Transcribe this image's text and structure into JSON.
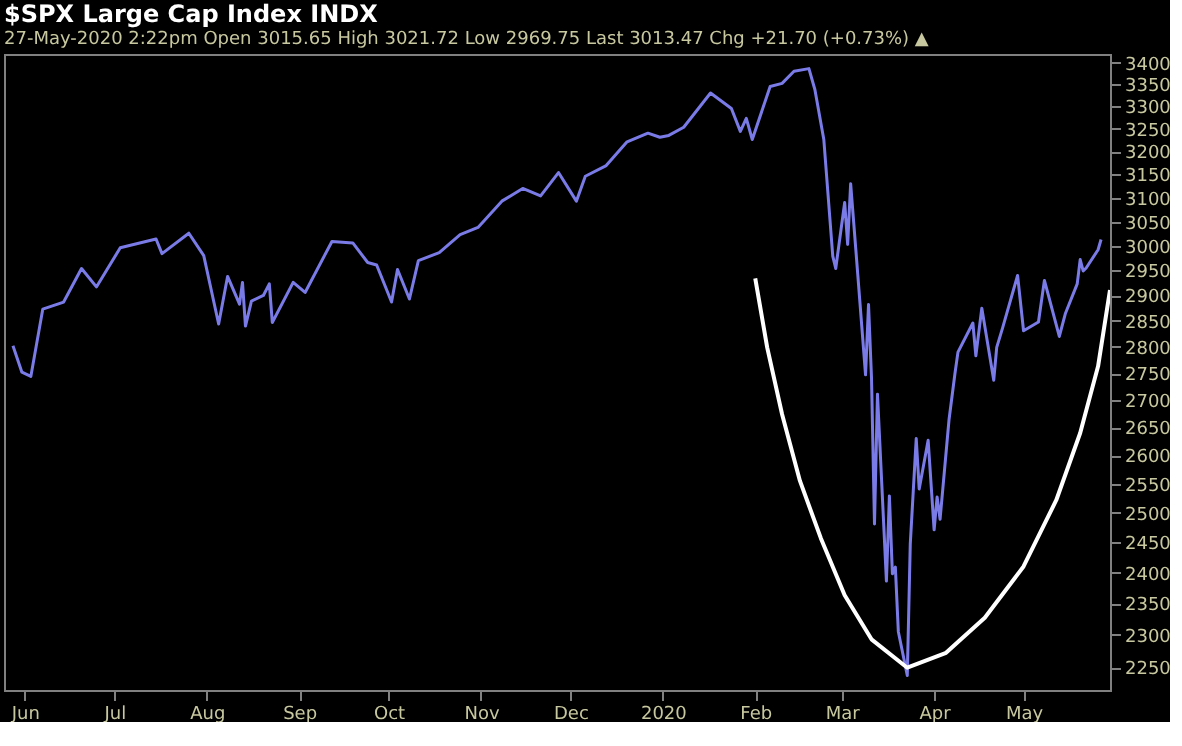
{
  "chart_data": {
    "type": "line",
    "title": "$SPX  Large Cap Index  INDX",
    "subtitle": "27-May-2020 2:22pm        Open 3015.65  High 3021.72  Low 2969.75  Last 3013.47  Chg +21.70 (+0.73%) ▲",
    "log": true,
    "grid": false,
    "xlim": [
      "2019-05-25",
      "2020-05-30"
    ],
    "xticks": [
      {
        "value": "2019-06-01",
        "label": "Jun"
      },
      {
        "value": "2019-07-01",
        "label": "Jul"
      },
      {
        "value": "2019-08-01",
        "label": "Aug"
      },
      {
        "value": "2019-09-01",
        "label": "Sep"
      },
      {
        "value": "2019-10-01",
        "label": "Oct"
      },
      {
        "value": "2019-11-01",
        "label": "Nov"
      },
      {
        "value": "2019-12-01",
        "label": "Dec"
      },
      {
        "value": "2020-01-01",
        "label": "2020"
      },
      {
        "value": "2020-02-01",
        "label": "Feb"
      },
      {
        "value": "2020-03-01",
        "label": "Mar"
      },
      {
        "value": "2020-04-01",
        "label": "Apr"
      },
      {
        "value": "2020-05-01",
        "label": "May"
      }
    ],
    "ylim": [
      2215,
      3420
    ],
    "yticks": [
      2250,
      2300,
      2350,
      2400,
      2450,
      2500,
      2550,
      2600,
      2650,
      2700,
      2750,
      2800,
      2850,
      2900,
      2950,
      3000,
      3050,
      3100,
      3150,
      3200,
      3250,
      3300,
      3350,
      3400
    ],
    "series": [
      {
        "color": "#7b7be8",
        "x": [
          "2019-05-28",
          "2019-05-31",
          "2019-06-03",
          "2019-06-07",
          "2019-06-14",
          "2019-06-20",
          "2019-06-25",
          "2019-07-03",
          "2019-07-15",
          "2019-07-17",
          "2019-07-26",
          "2019-07-31",
          "2019-08-05",
          "2019-08-08",
          "2019-08-12",
          "2019-08-13",
          "2019-08-14",
          "2019-08-16",
          "2019-08-20",
          "2019-08-22",
          "2019-08-23",
          "2019-08-30",
          "2019-09-03",
          "2019-09-12",
          "2019-09-19",
          "2019-09-24",
          "2019-09-27",
          "2019-10-02",
          "2019-10-04",
          "2019-10-08",
          "2019-10-11",
          "2019-10-18",
          "2019-10-25",
          "2019-10-31",
          "2019-11-08",
          "2019-11-15",
          "2019-11-21",
          "2019-11-27",
          "2019-12-03",
          "2019-12-06",
          "2019-12-13",
          "2019-12-20",
          "2019-12-27",
          "2019-12-31",
          "2020-01-03",
          "2020-01-08",
          "2020-01-17",
          "2020-01-24",
          "2020-01-27",
          "2020-01-29",
          "2020-01-31",
          "2020-02-06",
          "2020-02-10",
          "2020-02-14",
          "2020-02-19",
          "2020-02-21",
          "2020-02-24",
          "2020-02-27",
          "2020-02-28",
          "2020-03-02",
          "2020-03-03",
          "2020-03-04",
          "2020-03-06",
          "2020-03-09",
          "2020-03-10",
          "2020-03-11",
          "2020-03-12",
          "2020-03-13",
          "2020-03-16",
          "2020-03-17",
          "2020-03-18",
          "2020-03-19",
          "2020-03-20",
          "2020-03-23",
          "2020-03-24",
          "2020-03-26",
          "2020-03-27",
          "2020-03-30",
          "2020-04-01",
          "2020-04-02",
          "2020-04-03",
          "2020-04-06",
          "2020-04-08",
          "2020-04-09",
          "2020-04-14",
          "2020-04-15",
          "2020-04-17",
          "2020-04-21",
          "2020-04-22",
          "2020-04-24",
          "2020-04-29",
          "2020-05-01",
          "2020-05-06",
          "2020-05-08",
          "2020-05-13",
          "2020-05-15",
          "2020-05-19",
          "2020-05-20",
          "2020-05-21",
          "2020-05-22",
          "2020-05-26",
          "2020-05-27"
        ],
        "values": [
          2802,
          2752,
          2744,
          2873,
          2887,
          2954,
          2917,
          2996,
          3014,
          2984,
          3026,
          2980,
          2844,
          2938,
          2883,
          2926,
          2840,
          2889,
          2900,
          2923,
          2847,
          2926,
          2906,
          3009,
          3006,
          2966,
          2961,
          2887,
          2952,
          2893,
          2970,
          2986,
          3023,
          3038,
          3093,
          3120,
          3104,
          3154,
          3093,
          3146,
          3169,
          3221,
          3240,
          3231,
          3235,
          3253,
          3330,
          3295,
          3244,
          3273,
          3226,
          3345,
          3352,
          3380,
          3386,
          3338,
          3226,
          2979,
          2954,
          3090,
          3003,
          3130,
          2972,
          2747,
          2882,
          2741,
          2481,
          2711,
          2386,
          2529,
          2398,
          2409,
          2305,
          2237,
          2447,
          2630,
          2541,
          2627,
          2471,
          2527,
          2489,
          2664,
          2750,
          2790,
          2846,
          2783,
          2875,
          2737,
          2799,
          2837,
          2940,
          2831,
          2848,
          2930,
          2820,
          2864,
          2923,
          2972,
          2949,
          2955,
          2992,
          3013
        ]
      },
      {
        "type": "line",
        "color": "#ffffff",
        "x": [
          "2020-02-01",
          "2020-02-05",
          "2020-02-10",
          "2020-02-16",
          "2020-02-23",
          "2020-03-02",
          "2020-03-11",
          "2020-03-23",
          "2020-04-05",
          "2020-04-18",
          "2020-05-01",
          "2020-05-12",
          "2020-05-20",
          "2020-05-26",
          "2020-05-30"
        ],
        "values": [
          2934,
          2799,
          2674,
          2555,
          2457,
          2363,
          2293,
          2249,
          2272,
          2327,
          2410,
          2522,
          2640,
          2763,
          2911
        ]
      }
    ]
  }
}
